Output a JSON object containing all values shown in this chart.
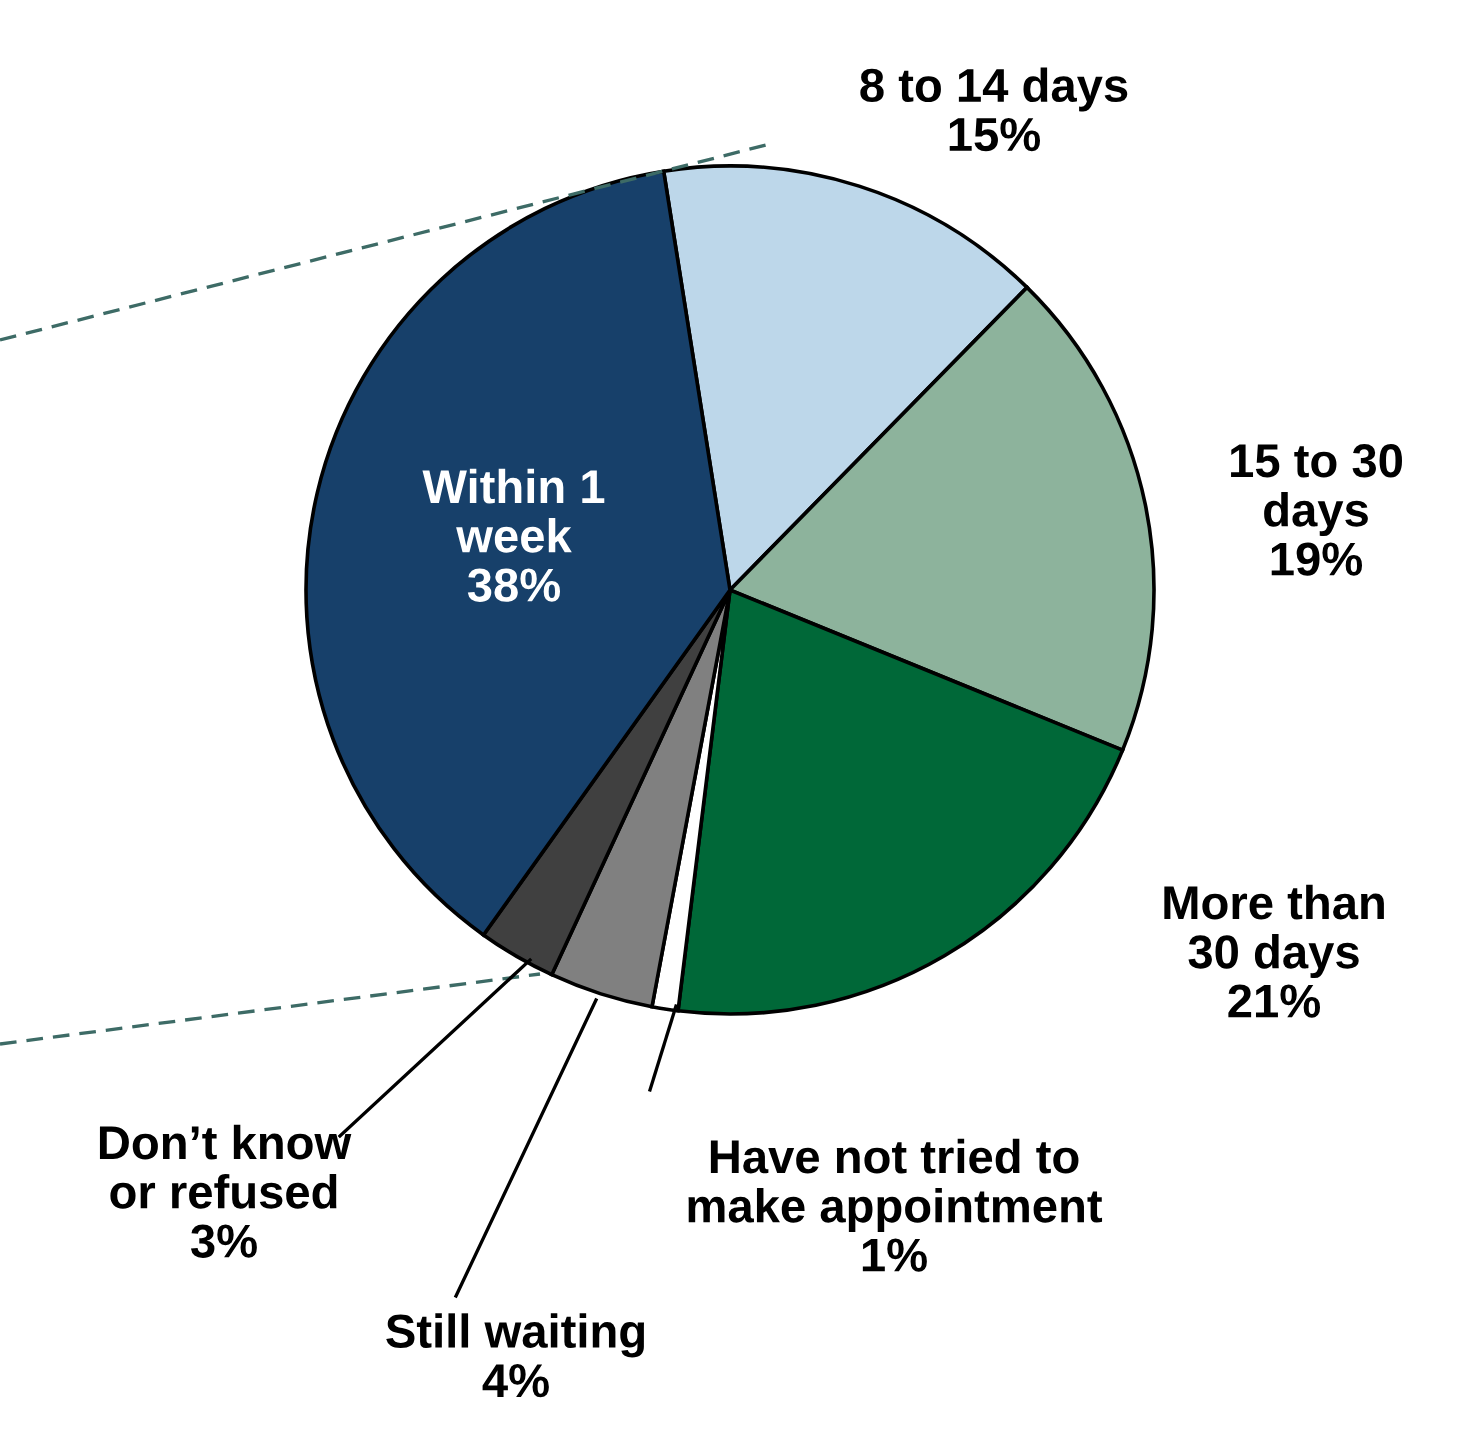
{
  "chart_data": {
    "type": "pie",
    "categories": [
      "8 to 14 days",
      "15 to 30\ndays",
      "More than\n30 days",
      "Have not tried to\nmake appointment",
      "Still waiting",
      "Don’t know\nor refused",
      "Within 1\nweek"
    ],
    "values": [
      15,
      19,
      21,
      1,
      4,
      3,
      38
    ],
    "value_labels": [
      "15%",
      "19%",
      "21%",
      "1%",
      "4%",
      "3%",
      "38%"
    ],
    "colors": [
      "#bdd7ea",
      "#8db39c",
      "#006838",
      "#ffffff",
      "#808080",
      "#404040",
      "#17406a"
    ]
  }
}
